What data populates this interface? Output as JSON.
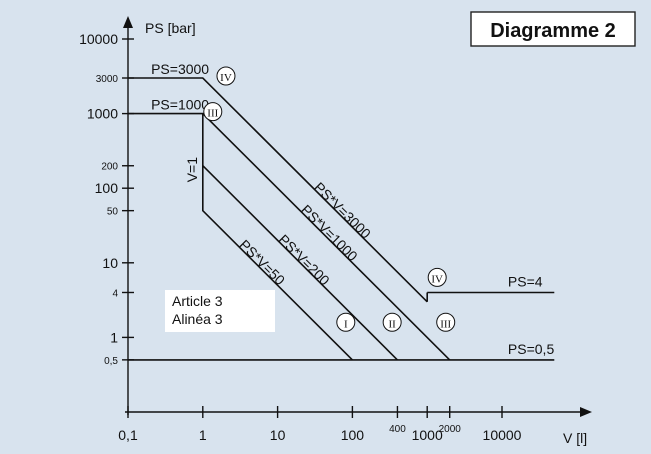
{
  "chart_data": {
    "type": "line",
    "title": "Diagramme 2",
    "xlabel": "V [l]",
    "ylabel": "PS [bar]",
    "x_scale": "log",
    "y_scale": "log",
    "xlim": [
      0.1,
      50000
    ],
    "ylim": [
      0.1,
      10000
    ],
    "x_ticks": [
      {
        "value": 0.1,
        "label": "0,1",
        "size": "normal"
      },
      {
        "value": 1,
        "label": "1",
        "size": "normal"
      },
      {
        "value": 10,
        "label": "10",
        "size": "normal"
      },
      {
        "value": 100,
        "label": "100",
        "size": "normal"
      },
      {
        "value": 400,
        "label": "400",
        "size": "small"
      },
      {
        "value": 1000,
        "label": "1000",
        "size": "normal"
      },
      {
        "value": 2000,
        "label": "2000",
        "size": "small"
      },
      {
        "value": 10000,
        "label": "10000",
        "size": "normal"
      }
    ],
    "y_ticks": [
      {
        "value": 0.5,
        "label": "0,5",
        "size": "small"
      },
      {
        "value": 1,
        "label": "1",
        "size": "normal"
      },
      {
        "value": 4,
        "label": "4",
        "size": "small"
      },
      {
        "value": 10,
        "label": "10",
        "size": "normal"
      },
      {
        "value": 50,
        "label": "50",
        "size": "small"
      },
      {
        "value": 100,
        "label": "100",
        "size": "normal"
      },
      {
        "value": 200,
        "label": "200",
        "size": "small"
      },
      {
        "value": 1000,
        "label": "1000",
        "size": "normal"
      },
      {
        "value": 3000,
        "label": "3000",
        "size": "small"
      },
      {
        "value": 10000,
        "label": "10000",
        "size": "normal"
      }
    ],
    "series": [
      {
        "name": "PS=3000",
        "points": [
          [
            0.1,
            3000
          ],
          [
            1,
            3000
          ],
          [
            1000,
            3
          ]
        ],
        "color": "#111111"
      },
      {
        "name": "PS=1000",
        "points": [
          [
            0.1,
            1000
          ],
          [
            1,
            1000
          ],
          [
            1,
            50
          ],
          [
            100,
            0.5
          ]
        ],
        "color": "#111111"
      },
      {
        "name": "PS*V=1000",
        "points": [
          [
            1,
            1000
          ],
          [
            2000,
            0.5
          ]
        ],
        "color": "#111111"
      },
      {
        "name": "PS*V=200",
        "points": [
          [
            1,
            200
          ],
          [
            400,
            0.5
          ]
        ],
        "color": "#111111"
      },
      {
        "name": "PS*V=3000/PS=4",
        "points": [
          [
            1000,
            4
          ],
          [
            50000,
            4
          ]
        ],
        "color": "#111111"
      },
      {
        "name": "PS=0,5",
        "points": [
          [
            0.1,
            0.5
          ],
          [
            50000,
            0.5
          ]
        ],
        "color": "#111111"
      }
    ],
    "line_labels": [
      {
        "text": "PS=3000",
        "x": 0.11,
        "y": 3000
      },
      {
        "text": "PS=1000",
        "x": 0.11,
        "y": 1000
      },
      {
        "text": "PS*V=3000",
        "x": 30,
        "y": 100
      },
      {
        "text": "PS*V=1000",
        "x": 20,
        "y": 50
      },
      {
        "text": "PS*V=200",
        "x": 10,
        "y": 20
      },
      {
        "text": "PS*V=50",
        "x": 3,
        "y": 17
      },
      {
        "text": "V=1",
        "x": 1,
        "y": 120
      },
      {
        "text": "PS=4",
        "x": 12000,
        "y": 4
      },
      {
        "text": "PS=0,5",
        "x": 12000,
        "y": 0.5
      }
    ],
    "category_markers": [
      {
        "label": "IV",
        "x": 1.5,
        "y": 3000
      },
      {
        "label": "III",
        "x": 1,
        "y": 1000
      },
      {
        "label": "IV",
        "x": 1000,
        "y": 6
      },
      {
        "label": "I",
        "x": 60,
        "y": 1.5
      },
      {
        "label": "II",
        "x": 250,
        "y": 1.5
      },
      {
        "label": "III",
        "x": 1300,
        "y": 1.5
      }
    ],
    "annotation": [
      "Article 3",
      "Alinéa 3"
    ],
    "grid": false
  }
}
